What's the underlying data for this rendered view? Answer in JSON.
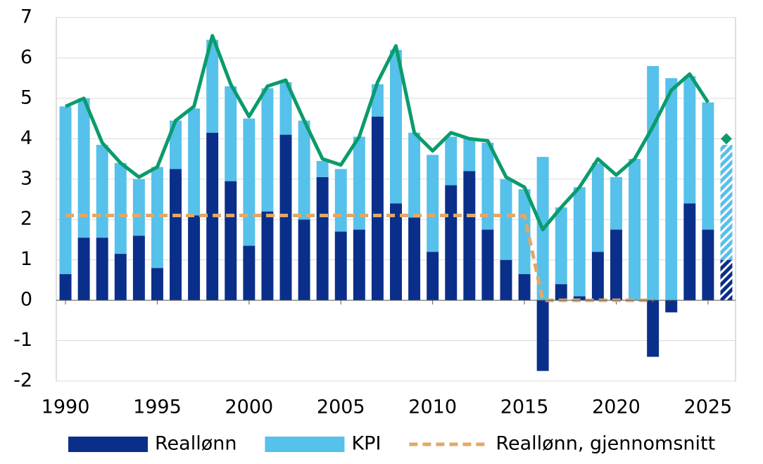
{
  "chart_data": {
    "type": "bar",
    "x": [
      1990,
      1991,
      1992,
      1993,
      1994,
      1995,
      1996,
      1997,
      1998,
      1999,
      2000,
      2001,
      2002,
      2003,
      2004,
      2005,
      2006,
      2007,
      2008,
      2009,
      2010,
      2011,
      2012,
      2013,
      2014,
      2015,
      2016,
      2017,
      2018,
      2019,
      2020,
      2021,
      2022,
      2023,
      2024,
      2025,
      2026
    ],
    "xlim": [
      1989.5,
      2026.5
    ],
    "xticks": [
      1990,
      1995,
      2000,
      2005,
      2010,
      2015,
      2020,
      2025
    ],
    "ylim": [
      -2,
      7
    ],
    "yticks": [
      -2,
      -1,
      0,
      1,
      2,
      3,
      4,
      5,
      6,
      7
    ],
    "grid": true,
    "hatched_x": 2026,
    "series": [
      {
        "name": "Reallønn",
        "type": "bar",
        "color": "#0a2f8a",
        "values": [
          0.65,
          1.55,
          1.55,
          1.15,
          1.6,
          0.8,
          3.25,
          2.1,
          4.15,
          2.95,
          1.35,
          2.2,
          4.1,
          2.0,
          3.05,
          1.7,
          1.75,
          4.55,
          2.4,
          2.05,
          1.2,
          2.85,
          3.2,
          1.75,
          1.0,
          0.65,
          -1.75,
          0.4,
          0.1,
          1.2,
          1.75,
          0.0,
          -1.4,
          -0.3,
          2.4,
          1.75,
          1.0
        ]
      },
      {
        "name": "KPI",
        "type": "bar",
        "color": "#56c1ea",
        "values": [
          4.15,
          3.45,
          2.3,
          2.25,
          1.4,
          2.5,
          1.2,
          2.65,
          2.3,
          2.35,
          3.15,
          3.05,
          1.3,
          2.45,
          0.4,
          1.55,
          2.3,
          0.8,
          3.8,
          2.1,
          2.4,
          1.2,
          0.8,
          2.15,
          2.0,
          2.1,
          3.55,
          1.9,
          2.7,
          2.2,
          1.3,
          3.5,
          5.8,
          5.5,
          3.15,
          3.15,
          2.85
        ]
      },
      {
        "name": "Reallønn, gjennomsnitt",
        "type": "dashed-line",
        "color": "#e2a867",
        "values": [
          2.1,
          2.1,
          2.1,
          2.1,
          2.1,
          2.1,
          2.1,
          2.1,
          2.1,
          2.1,
          2.1,
          2.1,
          2.1,
          2.1,
          2.1,
          2.1,
          2.1,
          2.1,
          2.1,
          2.1,
          2.1,
          2.1,
          2.1,
          2.1,
          2.1,
          2.1,
          0,
          0,
          0,
          0,
          0,
          0,
          0,
          null,
          null,
          null,
          null
        ]
      },
      {
        "type": "line",
        "color": "#0b9b6d",
        "values": [
          4.8,
          5.0,
          3.9,
          3.4,
          3.05,
          3.3,
          4.45,
          4.8,
          6.55,
          5.35,
          4.55,
          5.3,
          5.45,
          4.45,
          3.5,
          3.35,
          4.05,
          5.4,
          6.3,
          4.15,
          3.7,
          4.15,
          4.0,
          3.95,
          3.05,
          2.8,
          1.75,
          2.3,
          2.8,
          3.5,
          3.1,
          3.5,
          4.3,
          5.2,
          5.6,
          4.9,
          null
        ]
      },
      {
        "type": "marker",
        "color": "#0b9b6d",
        "values": [
          null,
          null,
          null,
          null,
          null,
          null,
          null,
          null,
          null,
          null,
          null,
          null,
          null,
          null,
          null,
          null,
          null,
          null,
          null,
          null,
          null,
          null,
          null,
          null,
          null,
          null,
          null,
          null,
          null,
          null,
          null,
          null,
          null,
          null,
          null,
          null,
          4.0
        ]
      }
    ]
  }
}
